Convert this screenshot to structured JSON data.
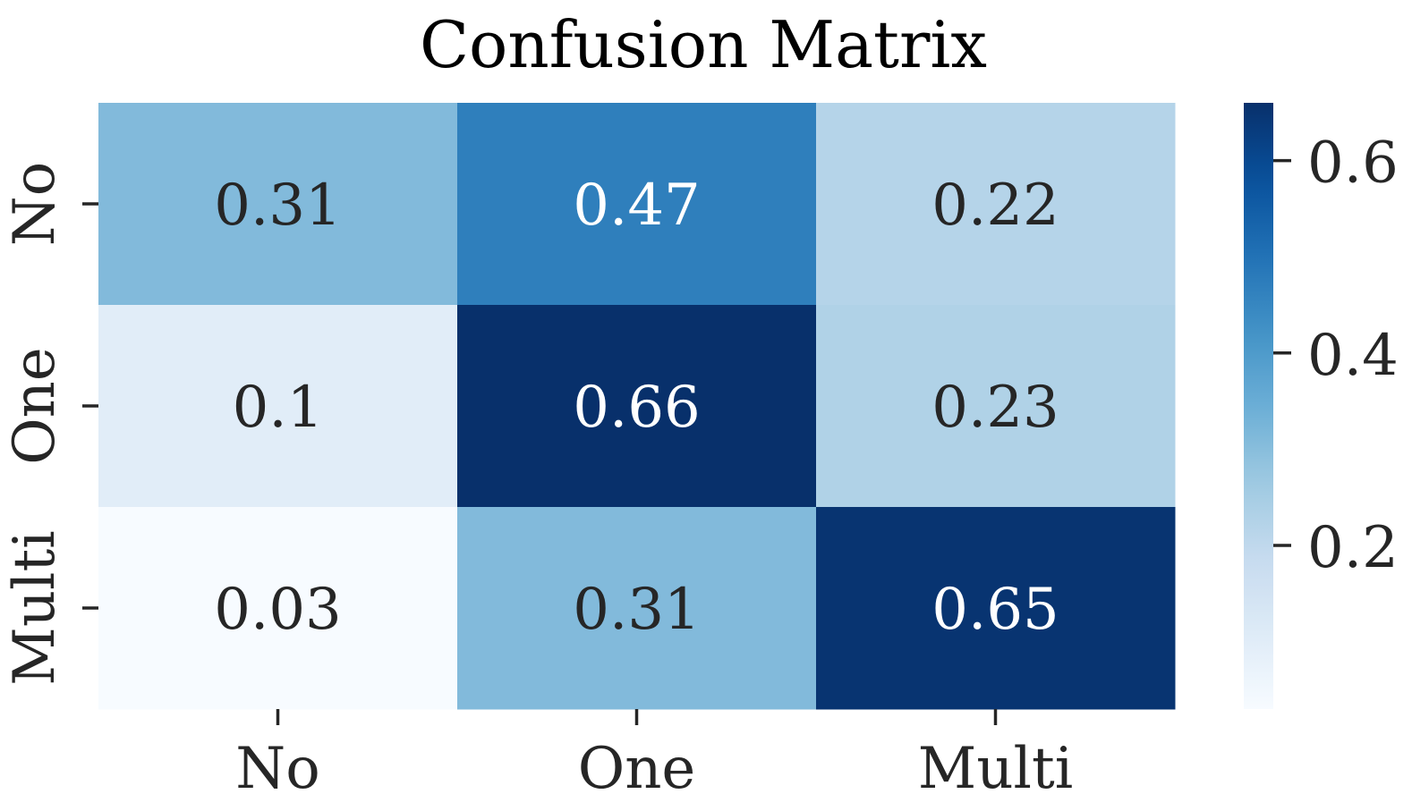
{
  "chart_data": {
    "type": "heatmap",
    "title": "Confusion Matrix",
    "xlabel": "",
    "ylabel": "",
    "x_categories": [
      "No",
      "One",
      "Multi"
    ],
    "y_categories": [
      "No",
      "One",
      "Multi"
    ],
    "values": [
      [
        0.31,
        0.47,
        0.22
      ],
      [
        0.1,
        0.66,
        0.23
      ],
      [
        0.03,
        0.31,
        0.65
      ]
    ],
    "value_labels": [
      [
        "0.31",
        "0.47",
        "0.22"
      ],
      [
        "0.1",
        "0.66",
        "0.23"
      ],
      [
        "0.03",
        "0.31",
        "0.65"
      ]
    ],
    "colorbar": {
      "colormap": "Blues",
      "range": [
        0.03,
        0.66
      ],
      "ticks": [
        0.2,
        0.4,
        0.6
      ],
      "tick_labels": [
        "0.2",
        "0.4",
        "0.6"
      ]
    },
    "grid": false,
    "annot_colors": {
      "dark": "#262626",
      "light": "#ffffff"
    }
  }
}
